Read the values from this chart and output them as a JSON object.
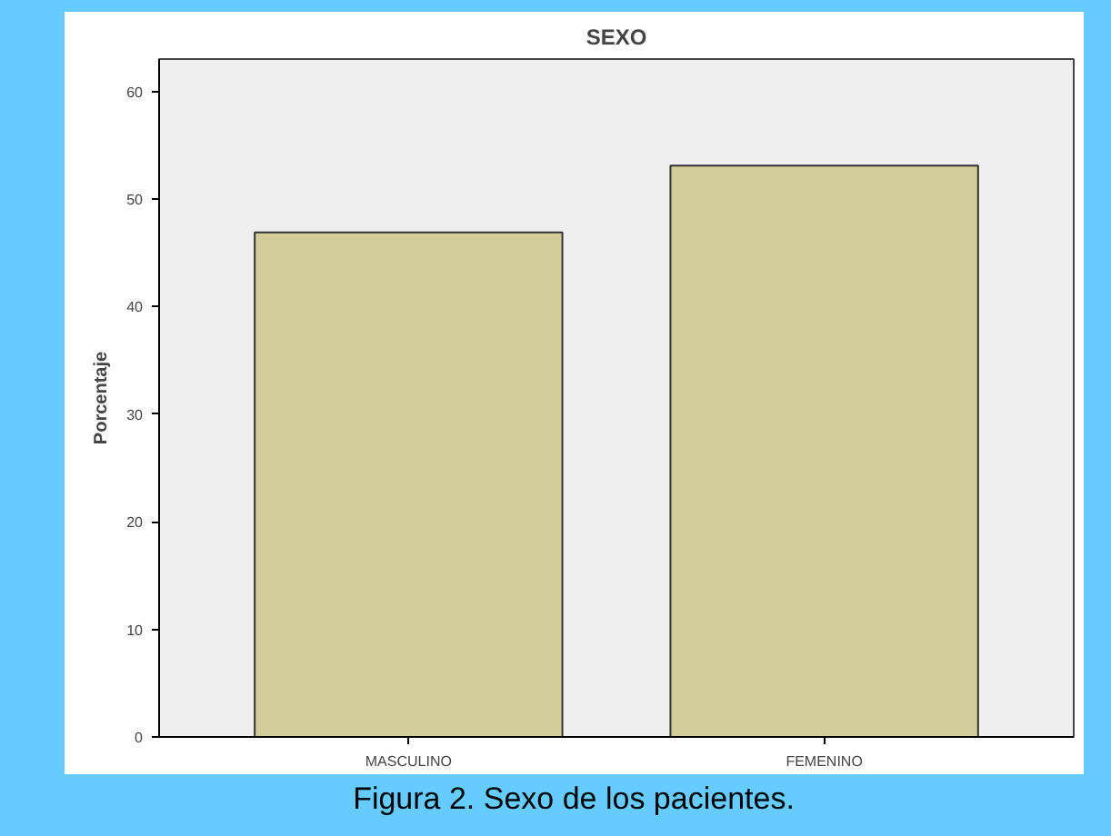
{
  "chart_data": {
    "type": "bar",
    "title": "SEXO",
    "ylabel": "Porcentaje",
    "categories": [
      "MASCULINO",
      "FEMENINO"
    ],
    "values": [
      46.9,
      53.1
    ],
    "color": "#d3ce99",
    "ylim": [
      0,
      63
    ],
    "yticks": [
      0,
      10,
      20,
      30,
      40,
      50,
      60
    ],
    "grid": false,
    "annotations": [
      "Figura 2. Sexo de los pacientes."
    ]
  }
}
